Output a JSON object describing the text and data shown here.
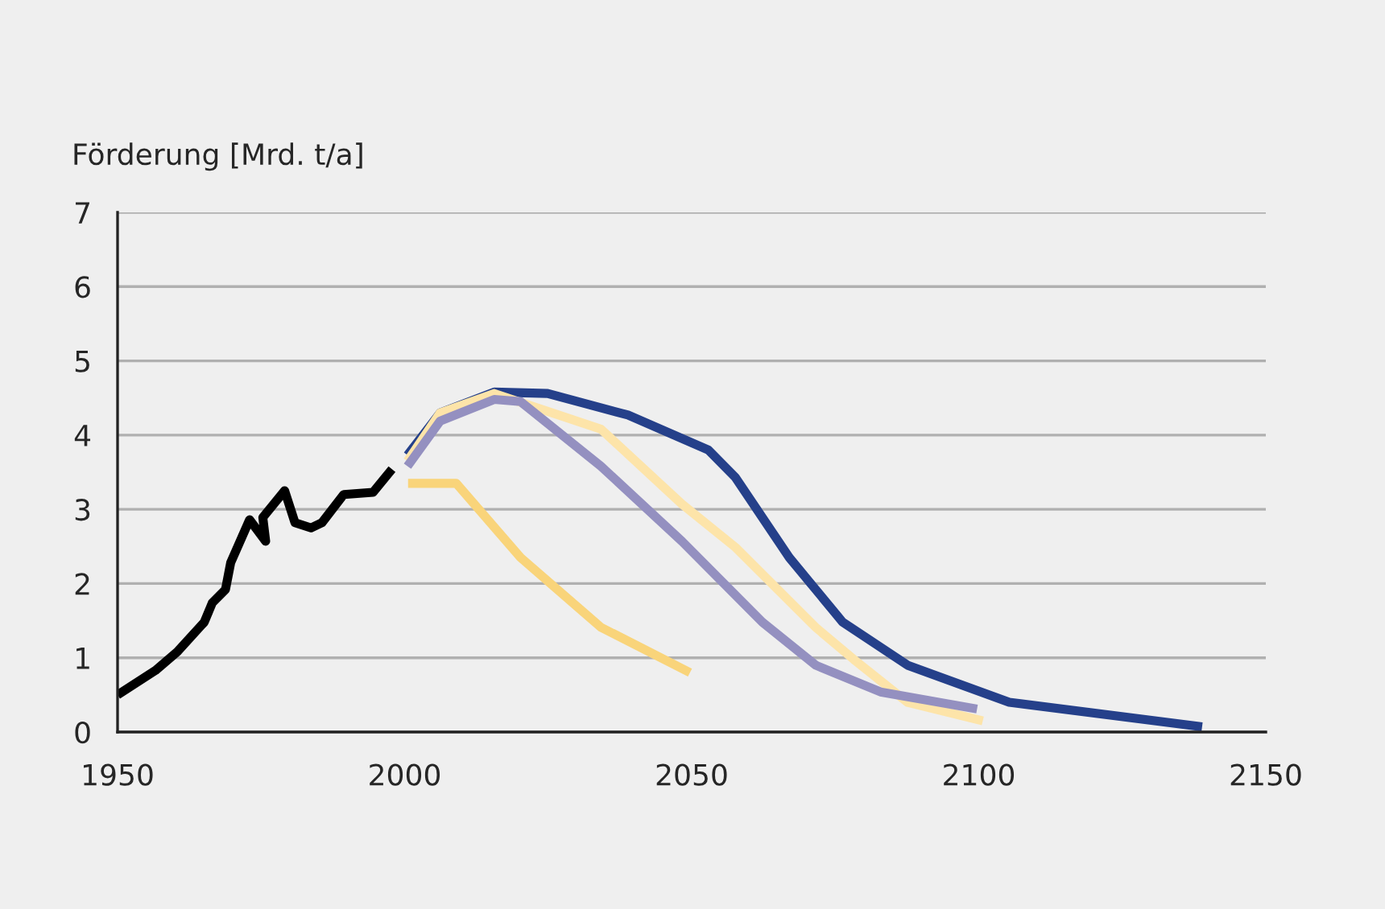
{
  "chart_data": {
    "type": "line",
    "ylabel": "Förderung [Mrd. t/a]",
    "xlim": [
      1950,
      2150
    ],
    "xticks": [
      1950,
      2000,
      2050,
      2100,
      2150
    ],
    "ylim": [
      0,
      7
    ],
    "yticks": [
      0,
      1,
      2,
      3,
      4,
      5,
      6,
      7
    ],
    "grid": "y",
    "marker": "none",
    "line_style": "solid",
    "series": [
      {
        "color": "#000000",
        "x": [
          1950,
          1956.6,
          1960.4,
          1965.1,
          1966.5,
          1968.8,
          1969.7,
          1973.0,
          1975.8,
          1975.3,
          1979.1,
          1980.9,
          1983.7,
          1985.6,
          1989.4,
          1994.5,
          1997.8
        ],
        "values": [
          0.5,
          0.83,
          1.08,
          1.48,
          1.74,
          1.92,
          2.28,
          2.86,
          2.57,
          2.89,
          3.25,
          2.82,
          2.75,
          2.82,
          3.2,
          3.23,
          3.54
        ]
      },
      {
        "color": "#25408a",
        "x": [
          2000.5,
          2006.2,
          2015.6,
          2024.9,
          2038.9,
          2052.9,
          2057.6,
          2067.0,
          2076.3,
          2087.6,
          2105.3,
          2138.9
        ],
        "values": [
          3.73,
          4.3,
          4.58,
          4.56,
          4.27,
          3.8,
          3.43,
          2.35,
          1.48,
          0.9,
          0.4,
          0.07
        ]
      },
      {
        "color": "#fde4a9",
        "x": [
          2000.5,
          2006.2,
          2015.6,
          2034.2,
          2048.3,
          2057.6,
          2071.6,
          2078.2,
          2087.6,
          2100.7
        ],
        "values": [
          3.65,
          4.3,
          4.56,
          4.08,
          3.07,
          2.49,
          1.41,
          0.98,
          0.4,
          0.15
        ]
      },
      {
        "color": "#9490c0",
        "x": [
          2000.5,
          2006.2,
          2015.6,
          2020.2,
          2034.2,
          2048.3,
          2062.3,
          2071.6,
          2082.9,
          2099.7
        ],
        "values": [
          3.58,
          4.19,
          4.48,
          4.45,
          3.58,
          2.57,
          1.48,
          0.9,
          0.54,
          0.31
        ]
      },
      {
        "color": "#f9d47a",
        "x": [
          2000.6,
          2009,
          2020.2,
          2034.2,
          2049.7
        ],
        "values": [
          3.35,
          3.35,
          2.35,
          1.41,
          0.8
        ]
      }
    ]
  }
}
